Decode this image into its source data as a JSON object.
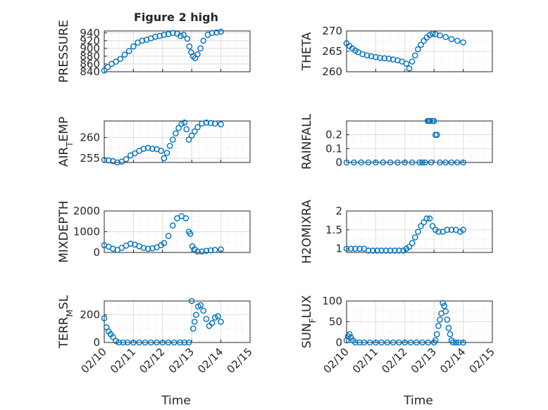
{
  "title": "Figure 2 high",
  "xlabel": "Time",
  "xtick_labels": [
    "02/10",
    "02/11",
    "02/12",
    "02/13",
    "02/14",
    "02/15"
  ],
  "colors": {
    "marker": "#0072BD",
    "grid": "#dcdcdc",
    "axis": "#262626",
    "background": "#ffffff"
  },
  "chart_data": [
    {
      "type": "scatter",
      "panel": "top-left",
      "ylabel_main": "PRESSURE",
      "ylabel_sub": "",
      "yticks": [
        "840",
        "860",
        "880",
        "900",
        "920",
        "940"
      ],
      "ylim": [
        840,
        945
      ],
      "xlim": [
        0,
        5
      ],
      "x": [
        0.0,
        0.12,
        0.25,
        0.4,
        0.55,
        0.7,
        0.85,
        1.0,
        1.15,
        1.3,
        1.45,
        1.6,
        1.75,
        1.9,
        2.05,
        2.2,
        2.35,
        2.5,
        2.62,
        2.72,
        2.85,
        2.92,
        2.98,
        3.05,
        3.12,
        3.2,
        3.3,
        3.4,
        3.55,
        3.7,
        3.85,
        4.0
      ],
      "y": [
        843,
        852,
        860,
        866,
        873,
        884,
        893,
        905,
        915,
        920,
        922,
        926,
        930,
        932,
        935,
        937,
        940,
        938,
        932,
        935,
        925,
        905,
        890,
        880,
        875,
        885,
        900,
        920,
        935,
        940,
        941,
        943
      ]
    },
    {
      "type": "scatter",
      "panel": "top-right",
      "ylabel_main": "THETA",
      "ylabel_sub": "",
      "yticks": [
        "260",
        "265",
        "270"
      ],
      "ylim": [
        260,
        270
      ],
      "xlim": [
        0,
        5
      ],
      "x": [
        0.0,
        0.1,
        0.2,
        0.3,
        0.4,
        0.55,
        0.7,
        0.85,
        1.0,
        1.15,
        1.3,
        1.45,
        1.6,
        1.75,
        1.9,
        2.05,
        2.15,
        2.25,
        2.35,
        2.45,
        2.55,
        2.65,
        2.75,
        2.85,
        2.95,
        3.05,
        3.2,
        3.4,
        3.6,
        3.8,
        4.0
      ],
      "y": [
        267.0,
        266.3,
        265.7,
        265.2,
        264.8,
        264.3,
        264.0,
        263.8,
        263.6,
        263.4,
        263.3,
        263.2,
        263.0,
        262.8,
        262.5,
        262.0,
        260.8,
        262.5,
        264.0,
        265.5,
        266.6,
        267.6,
        268.4,
        269.0,
        269.3,
        269.2,
        268.9,
        268.5,
        268.0,
        267.6,
        267.2
      ]
    },
    {
      "type": "scatter",
      "panel": "middle-upper-left",
      "ylabel_main": "AIR",
      "ylabel_sub": "T",
      "ylabel_tail": "EMP",
      "yticks": [
        "255",
        "260"
      ],
      "ylim": [
        254,
        264
      ],
      "xlim": [
        0,
        5
      ],
      "x": [
        0.0,
        0.15,
        0.3,
        0.45,
        0.6,
        0.75,
        0.9,
        1.05,
        1.2,
        1.35,
        1.5,
        1.65,
        1.8,
        1.95,
        2.05,
        2.15,
        2.25,
        2.35,
        2.45,
        2.55,
        2.65,
        2.75,
        2.82,
        2.9,
        3.0,
        3.1,
        3.2,
        3.35,
        3.5,
        3.65,
        3.8,
        4.0
      ],
      "y": [
        254.6,
        254.5,
        254.3,
        254.0,
        254.2,
        254.8,
        255.7,
        256.2,
        256.8,
        257.3,
        257.5,
        257.3,
        257.2,
        256.8,
        255.0,
        256.3,
        258.0,
        259.5,
        261.0,
        262.3,
        263.3,
        263.6,
        262.0,
        259.5,
        260.5,
        261.5,
        262.5,
        263.4,
        263.6,
        263.5,
        263.4,
        263.2
      ]
    },
    {
      "type": "scatter",
      "panel": "middle-upper-right",
      "ylabel_main": "RAINFALL",
      "ylabel_sub": "",
      "yticks": [
        "0",
        "0.1",
        "0.2"
      ],
      "ylim": [
        0,
        0.3
      ],
      "xlim": [
        0,
        5
      ],
      "x": [
        0.0,
        0.25,
        0.5,
        0.75,
        1.0,
        1.25,
        1.5,
        1.75,
        2.0,
        2.25,
        2.5,
        2.6,
        2.7,
        2.78,
        2.82,
        2.86,
        2.9,
        2.95,
        3.0,
        3.05,
        3.1,
        3.2,
        3.4,
        3.6,
        3.8,
        4.0
      ],
      "y": [
        0,
        0,
        0,
        0,
        0,
        0,
        0,
        0,
        0,
        0,
        0,
        0,
        0,
        0.3,
        0.3,
        0.3,
        0,
        0.3,
        0.3,
        0.2,
        0.2,
        0,
        0,
        0,
        0,
        0
      ]
    },
    {
      "type": "scatter",
      "panel": "middle-lower-left",
      "ylabel_main": "MIXDEPTH",
      "ylabel_sub": "",
      "yticks": [
        "0",
        "1000",
        "2000"
      ],
      "ylim": [
        0,
        2000
      ],
      "xlim": [
        0,
        5
      ],
      "x": [
        0.0,
        0.15,
        0.3,
        0.45,
        0.6,
        0.75,
        0.9,
        1.05,
        1.2,
        1.35,
        1.5,
        1.65,
        1.8,
        1.95,
        2.05,
        2.2,
        2.35,
        2.5,
        2.65,
        2.8,
        2.9,
        2.95,
        3.02,
        3.1,
        3.2,
        3.35,
        3.5,
        3.65,
        3.8,
        4.0
      ],
      "y": [
        350,
        280,
        180,
        120,
        220,
        330,
        420,
        380,
        300,
        220,
        180,
        200,
        250,
        350,
        450,
        800,
        1300,
        1650,
        1750,
        1650,
        1000,
        900,
        300,
        150,
        50,
        50,
        80,
        100,
        120,
        150
      ]
    },
    {
      "type": "scatter",
      "panel": "middle-lower-right",
      "ylabel_main": "H2OMIXRA",
      "ylabel_sub": "",
      "yticks": [
        "1",
        "1.5",
        "2"
      ],
      "ylim": [
        0.9,
        2.0
      ],
      "xlim": [
        0,
        5
      ],
      "x": [
        0.0,
        0.15,
        0.3,
        0.45,
        0.6,
        0.75,
        0.9,
        1.05,
        1.2,
        1.35,
        1.5,
        1.65,
        1.8,
        1.95,
        2.05,
        2.15,
        2.25,
        2.35,
        2.45,
        2.55,
        2.65,
        2.75,
        2.85,
        2.95,
        3.05,
        3.15,
        3.3,
        3.45,
        3.6,
        3.75,
        3.9,
        4.0
      ],
      "y": [
        1.0,
        1.0,
        1.0,
        1.0,
        1.0,
        0.95,
        0.95,
        0.95,
        0.95,
        0.95,
        0.95,
        0.95,
        0.95,
        0.95,
        1.0,
        1.05,
        1.15,
        1.3,
        1.45,
        1.6,
        1.7,
        1.8,
        1.8,
        1.6,
        1.5,
        1.45,
        1.45,
        1.5,
        1.5,
        1.5,
        1.45,
        1.5
      ]
    },
    {
      "type": "scatter",
      "panel": "bottom-left",
      "ylabel_main": "TERR",
      "ylabel_sub": "M",
      "ylabel_tail": "SL",
      "yticks": [
        "0",
        "200"
      ],
      "ylim": [
        0,
        300
      ],
      "xlim": [
        0,
        5
      ],
      "x": [
        0.0,
        0.08,
        0.15,
        0.22,
        0.3,
        0.4,
        0.5,
        0.65,
        0.8,
        1.0,
        1.2,
        1.4,
        1.6,
        1.8,
        2.0,
        2.2,
        2.4,
        2.6,
        2.75,
        2.9,
        3.0,
        3.05,
        3.1,
        3.15,
        3.22,
        3.3,
        3.4,
        3.5,
        3.6,
        3.7,
        3.8,
        3.9,
        4.0
      ],
      "y": [
        175,
        110,
        80,
        60,
        40,
        10,
        0,
        0,
        0,
        0,
        0,
        0,
        0,
        0,
        0,
        0,
        0,
        0,
        0,
        0,
        300,
        100,
        150,
        200,
        260,
        270,
        230,
        170,
        120,
        140,
        180,
        190,
        150
      ]
    },
    {
      "type": "scatter",
      "panel": "bottom-right",
      "ylabel_main": "SUN",
      "ylabel_sub": "F",
      "ylabel_tail": "LUX",
      "yticks": [
        "0",
        "50",
        "100"
      ],
      "ylim": [
        0,
        100
      ],
      "xlim": [
        0,
        5
      ],
      "x": [
        0.0,
        0.05,
        0.1,
        0.15,
        0.22,
        0.3,
        0.45,
        0.6,
        0.8,
        1.0,
        1.2,
        1.4,
        1.6,
        1.8,
        2.0,
        2.2,
        2.4,
        2.6,
        2.8,
        3.0,
        3.05,
        3.1,
        3.15,
        3.2,
        3.25,
        3.3,
        3.35,
        3.4,
        3.45,
        3.5,
        3.55,
        3.6,
        3.65,
        3.75,
        3.85,
        4.0
      ],
      "y": [
        5,
        15,
        20,
        12,
        5,
        0,
        0,
        0,
        0,
        0,
        0,
        0,
        0,
        0,
        0,
        0,
        0,
        0,
        0,
        0,
        5,
        20,
        40,
        55,
        70,
        95,
        88,
        75,
        55,
        35,
        20,
        5,
        0,
        0,
        0,
        0
      ]
    }
  ]
}
